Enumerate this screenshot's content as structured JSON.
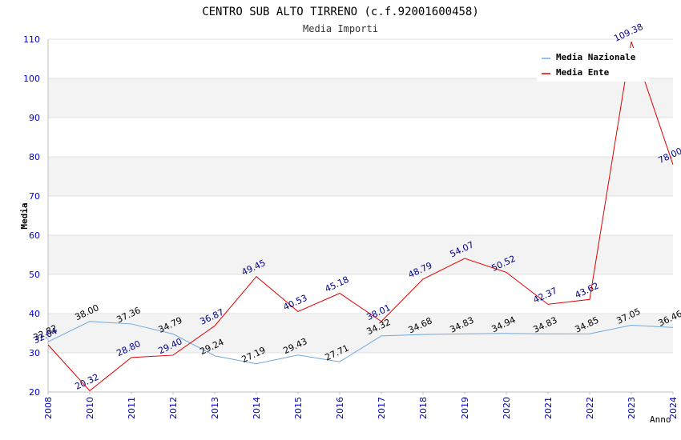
{
  "chart_data": {
    "type": "line",
    "title": "CENTRO SUB ALTO TIRRENO (c.f.92001600458)",
    "subtitle": "Media Importi",
    "xlabel": "Anno",
    "ylabel": "Media",
    "ylim": [
      20,
      110
    ],
    "yticks": [
      "20",
      "30",
      "40",
      "50",
      "60",
      "70",
      "80",
      "90",
      "100",
      "110"
    ],
    "categories": [
      "2008",
      "2010",
      "2011",
      "2012",
      "2013",
      "2014",
      "2015",
      "2016",
      "2017",
      "2018",
      "2019",
      "2020",
      "2021",
      "2022",
      "2023",
      "2024"
    ],
    "series": [
      {
        "name": "Media Nazionale",
        "color": "#6fa8dc",
        "label_color": "#000000",
        "values": [
          32.82,
          38.0,
          37.36,
          34.79,
          29.24,
          27.19,
          29.43,
          27.71,
          34.32,
          34.68,
          34.83,
          34.94,
          34.83,
          34.85,
          37.05,
          36.46
        ],
        "labels": [
          "32.82",
          "38.00",
          "37.36",
          "34.79",
          "29.24",
          "27.19",
          "29.43",
          "27.71",
          "34.32",
          "34.68",
          "34.83",
          "34.94",
          "34.83",
          "34.85",
          "37.05",
          "36.46"
        ]
      },
      {
        "name": "Media Ente",
        "color": "#e00000",
        "label_color": "#00008b",
        "values": [
          32.04,
          20.32,
          28.8,
          29.4,
          36.87,
          49.45,
          40.53,
          45.18,
          38.01,
          48.79,
          54.07,
          50.52,
          42.37,
          43.62,
          109.38,
          78.0
        ],
        "labels": [
          "32.04",
          "20.32",
          "28.80",
          "29.40",
          "36.87",
          "49.45",
          "40.53",
          "45.18",
          "38.01",
          "48.79",
          "54.07",
          "50.52",
          "42.37",
          "43.62",
          "109.38",
          "78.00"
        ]
      }
    ],
    "legend_position": "top-right",
    "grid": true
  }
}
